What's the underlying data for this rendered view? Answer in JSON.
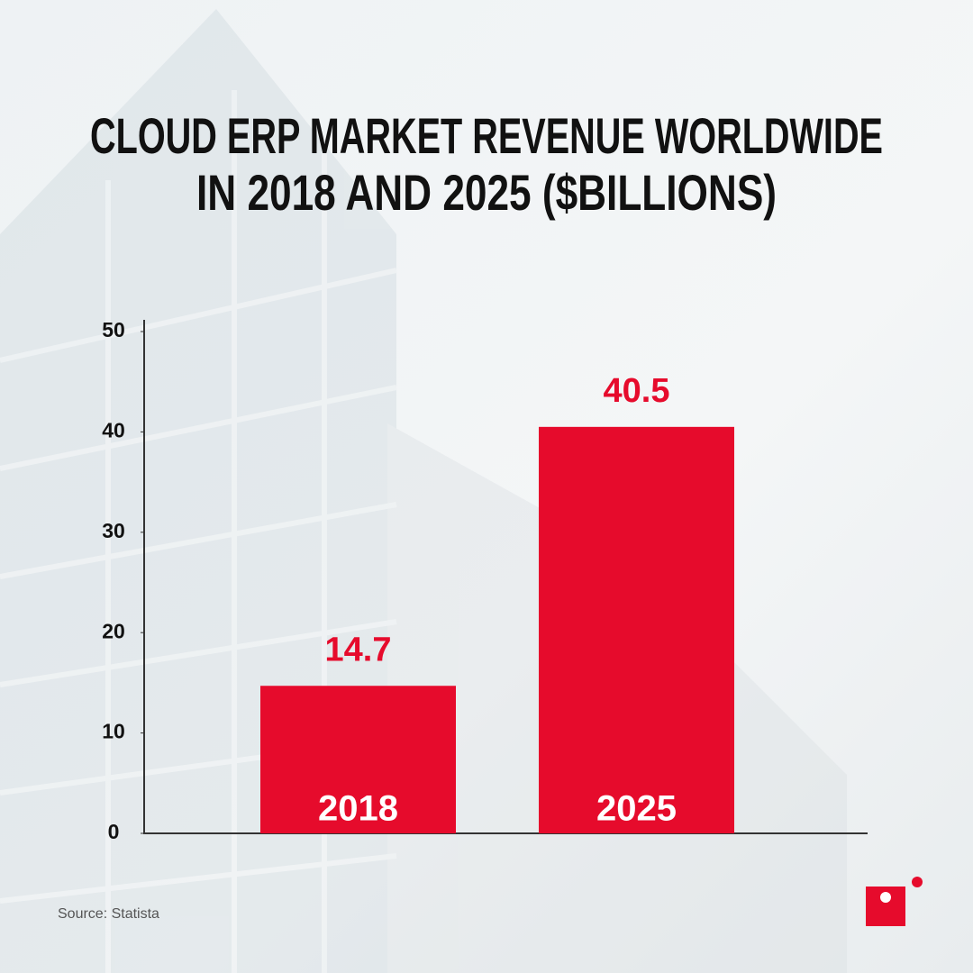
{
  "chart_data": {
    "type": "bar",
    "title": [
      "CLOUD ERP MARKET REVENUE WORLDWIDE",
      "IN 2018 AND 2025 ($BILLIONS)"
    ],
    "categories": [
      "2018",
      "2025"
    ],
    "values": [
      14.7,
      40.5
    ],
    "color": "#e60b2c",
    "ylim": [
      0,
      50
    ],
    "yticks": [
      0,
      10,
      20,
      30,
      40,
      50
    ],
    "source": "Source: Statista"
  }
}
